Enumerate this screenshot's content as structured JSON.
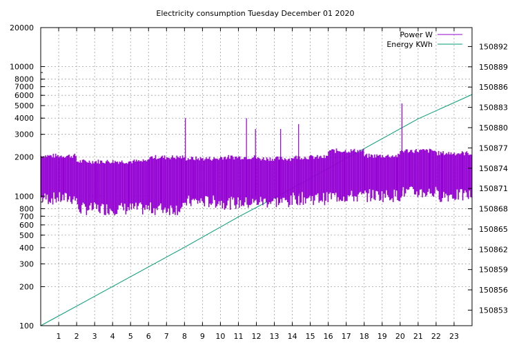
{
  "chart_data": {
    "type": "line",
    "title": "Electricity consumption Tuesday December 01 2020",
    "x_axis": {
      "ticks": [
        1,
        2,
        3,
        4,
        5,
        6,
        7,
        8,
        9,
        10,
        11,
        12,
        13,
        14,
        15,
        16,
        17,
        18,
        19,
        20,
        21,
        22,
        23
      ],
      "range": [
        0,
        24
      ]
    },
    "y_left": {
      "scale": "log",
      "range": [
        100,
        20000
      ],
      "ticks": [
        100,
        200,
        300,
        400,
        500,
        600,
        700,
        800,
        1000,
        2000,
        3000,
        4000,
        5000,
        6000,
        7000,
        8000,
        10000,
        20000
      ]
    },
    "y_right": {
      "scale": "linear",
      "range": [
        150850.7,
        150894.8
      ],
      "ticks": [
        150853,
        150856,
        150859,
        150862,
        150865,
        150868,
        150871,
        150874,
        150877,
        150880,
        150883,
        150886,
        150889,
        150892
      ]
    },
    "grid": true,
    "legend_position": "top-right",
    "series": [
      {
        "name": "Power W",
        "axis": "left",
        "color": "#9400d3",
        "segments": [
          {
            "from": 0.0,
            "to": 2.0,
            "high": 2100,
            "low": 900
          },
          {
            "from": 2.0,
            "to": 4.0,
            "high": 1900,
            "low": 750
          },
          {
            "from": 4.0,
            "to": 6.0,
            "high": 1900,
            "low": 750
          },
          {
            "from": 6.0,
            "to": 8.0,
            "high": 2050,
            "low": 750
          },
          {
            "from": 8.0,
            "to": 10.0,
            "high": 2000,
            "low": 850
          },
          {
            "from": 10.0,
            "to": 12.0,
            "high": 2050,
            "low": 830
          },
          {
            "from": 12.0,
            "to": 14.0,
            "high": 2000,
            "low": 850
          },
          {
            "from": 14.0,
            "to": 16.0,
            "high": 2050,
            "low": 900
          },
          {
            "from": 16.0,
            "to": 18.0,
            "high": 2300,
            "low": 930
          },
          {
            "from": 18.0,
            "to": 20.0,
            "high": 2100,
            "low": 950
          },
          {
            "from": 20.0,
            "to": 22.0,
            "high": 2300,
            "low": 1000
          },
          {
            "from": 22.0,
            "to": 24.0,
            "high": 2200,
            "low": 950
          }
        ],
        "spikes": [
          {
            "x": 8.05,
            "y": 4000
          },
          {
            "x": 11.45,
            "y": 4000
          },
          {
            "x": 11.95,
            "y": 3300
          },
          {
            "x": 13.35,
            "y": 3300
          },
          {
            "x": 14.35,
            "y": 3600
          },
          {
            "x": 20.1,
            "y": 5200
          }
        ]
      },
      {
        "name": "Energy KWh",
        "axis": "right",
        "color": "#009e73",
        "x": [
          0,
          4,
          8,
          11,
          13,
          15,
          18,
          21,
          24
        ],
        "y": [
          150850.7,
          150856.5,
          150862.3,
          150866.8,
          150869.6,
          150872.5,
          150876.9,
          150881.3,
          150884.9
        ]
      }
    ]
  }
}
